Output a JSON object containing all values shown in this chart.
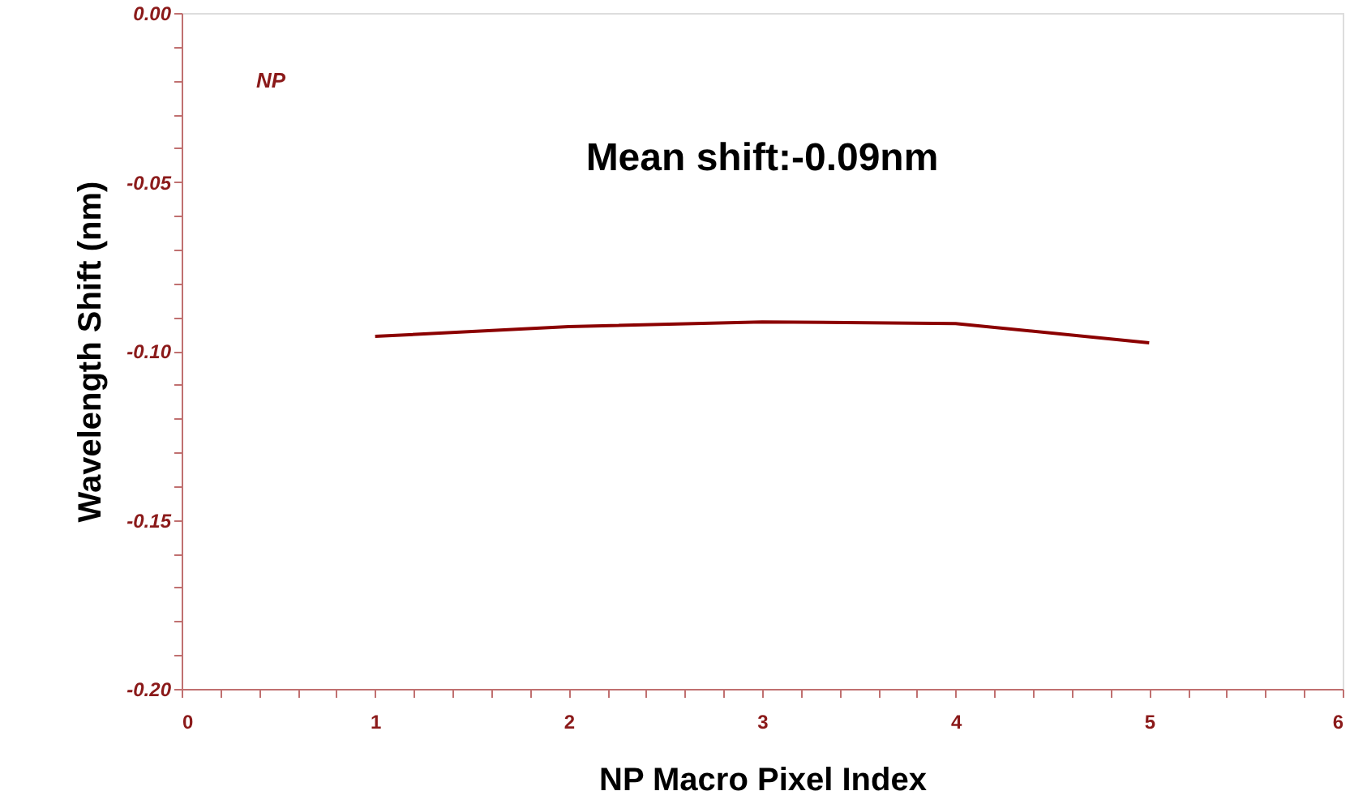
{
  "chart_data": {
    "type": "line",
    "xlabel": "NP Macro Pixel Index",
    "ylabel": "Wavelength Shift (nm)",
    "annotations": [
      "NP",
      "Mean shift:-0.09nm"
    ],
    "x": [
      1,
      2,
      3,
      4,
      5
    ],
    "series": [
      {
        "color": "#8b0000",
        "values": [
          -0.0957,
          -0.0928,
          -0.0914,
          -0.0919,
          -0.0976
        ]
      }
    ],
    "xlim": [
      0,
      6
    ],
    "ylim": [
      -0.2,
      0.0
    ],
    "xticks": [
      0,
      {
        "value": 0.2,
        "label": null
      },
      {
        "value": 0.4,
        "label": null
      },
      {
        "value": 0.6,
        "label": null
      },
      {
        "value": 0.8,
        "label": null
      },
      1,
      {
        "value": 1.2,
        "label": null
      },
      {
        "value": 1.4,
        "label": null
      },
      {
        "value": 1.6,
        "label": null
      },
      {
        "value": 1.8,
        "label": null
      },
      2,
      {
        "value": 2.2,
        "label": null
      },
      {
        "value": 2.4,
        "label": null
      },
      {
        "value": 2.6,
        "label": null
      },
      {
        "value": 2.8,
        "label": null
      },
      3,
      {
        "value": 3.2,
        "label": null
      },
      {
        "value": 3.4,
        "label": null
      },
      {
        "value": 3.6,
        "label": null
      },
      {
        "value": 3.8,
        "label": null
      },
      4,
      {
        "value": 4.2,
        "label": null
      },
      {
        "value": 4.4,
        "label": null
      },
      {
        "value": 4.6,
        "label": null
      },
      {
        "value": 4.8,
        "label": null
      },
      5,
      {
        "value": 5.2,
        "label": null
      },
      {
        "value": 5.4,
        "label": null
      },
      {
        "value": 5.6,
        "label": null
      },
      {
        "value": 5.8,
        "label": null
      },
      6
    ],
    "yticks": [
      {
        "value": -0.2,
        "label": "-0.20"
      },
      {
        "value": -0.19,
        "label": null
      },
      {
        "value": -0.18,
        "label": null
      },
      {
        "value": -0.17,
        "label": null
      },
      {
        "value": -0.16,
        "label": null
      },
      {
        "value": -0.15,
        "label": "-0.15"
      },
      {
        "value": -0.14,
        "label": null
      },
      {
        "value": -0.13,
        "label": null
      },
      {
        "value": -0.12,
        "label": null
      },
      {
        "value": -0.11,
        "label": null
      },
      {
        "value": -0.1,
        "label": "-0.10"
      },
      {
        "value": -0.09,
        "label": null
      },
      {
        "value": -0.08,
        "label": null
      },
      {
        "value": -0.07,
        "label": null
      },
      {
        "value": -0.06,
        "label": null
      },
      {
        "value": -0.05,
        "label": "-0.05"
      },
      {
        "value": -0.04,
        "label": null
      },
      {
        "value": -0.03,
        "label": null
      },
      {
        "value": -0.02,
        "label": null
      },
      {
        "value": -0.01,
        "label": null
      },
      {
        "value": 0.0,
        "label": "0.00"
      }
    ],
    "grid": false,
    "marker": "none",
    "line_style": "solid"
  }
}
